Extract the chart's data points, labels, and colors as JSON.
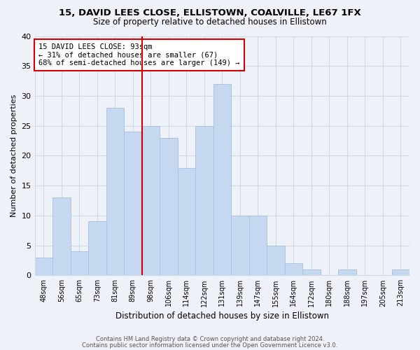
{
  "title_line1": "15, DAVID LEES CLOSE, ELLISTOWN, COALVILLE, LE67 1FX",
  "title_line2": "Size of property relative to detached houses in Ellistown",
  "xlabel": "Distribution of detached houses by size in Ellistown",
  "ylabel": "Number of detached properties",
  "bin_labels": [
    "48sqm",
    "56sqm",
    "65sqm",
    "73sqm",
    "81sqm",
    "89sqm",
    "98sqm",
    "106sqm",
    "114sqm",
    "122sqm",
    "131sqm",
    "139sqm",
    "147sqm",
    "155sqm",
    "164sqm",
    "172sqm",
    "180sqm",
    "188sqm",
    "197sqm",
    "205sqm",
    "213sqm"
  ],
  "n_bins": 21,
  "counts": [
    3,
    13,
    4,
    9,
    28,
    24,
    25,
    23,
    18,
    25,
    32,
    10,
    10,
    5,
    2,
    1,
    0,
    1,
    0,
    0,
    1
  ],
  "bar_color": "#c5d8f0",
  "bar_edge_color": "#aac4e0",
  "vline_x_bin": 5.5,
  "vline_color": "#cc0000",
  "annotation_title": "15 DAVID LEES CLOSE: 93sqm",
  "annotation_line1": "← 31% of detached houses are smaller (67)",
  "annotation_line2": "68% of semi-detached houses are larger (149) →",
  "annotation_box_edge_color": "#cc0000",
  "annotation_box_face_color": "#ffffff",
  "ylim": [
    0,
    40
  ],
  "yticks": [
    0,
    5,
    10,
    15,
    20,
    25,
    30,
    35,
    40
  ],
  "footer_line1": "Contains HM Land Registry data © Crown copyright and database right 2024.",
  "footer_line2": "Contains public sector information licensed under the Open Government Licence v3.0.",
  "grid_color": "#d0d8e8",
  "background_color": "#eef2f8",
  "title_fontsize": 9.5,
  "subtitle_fontsize": 8.5,
  "xlabel_fontsize": 8.5,
  "ylabel_fontsize": 8,
  "tick_fontsize": 7,
  "footer_fontsize": 6
}
